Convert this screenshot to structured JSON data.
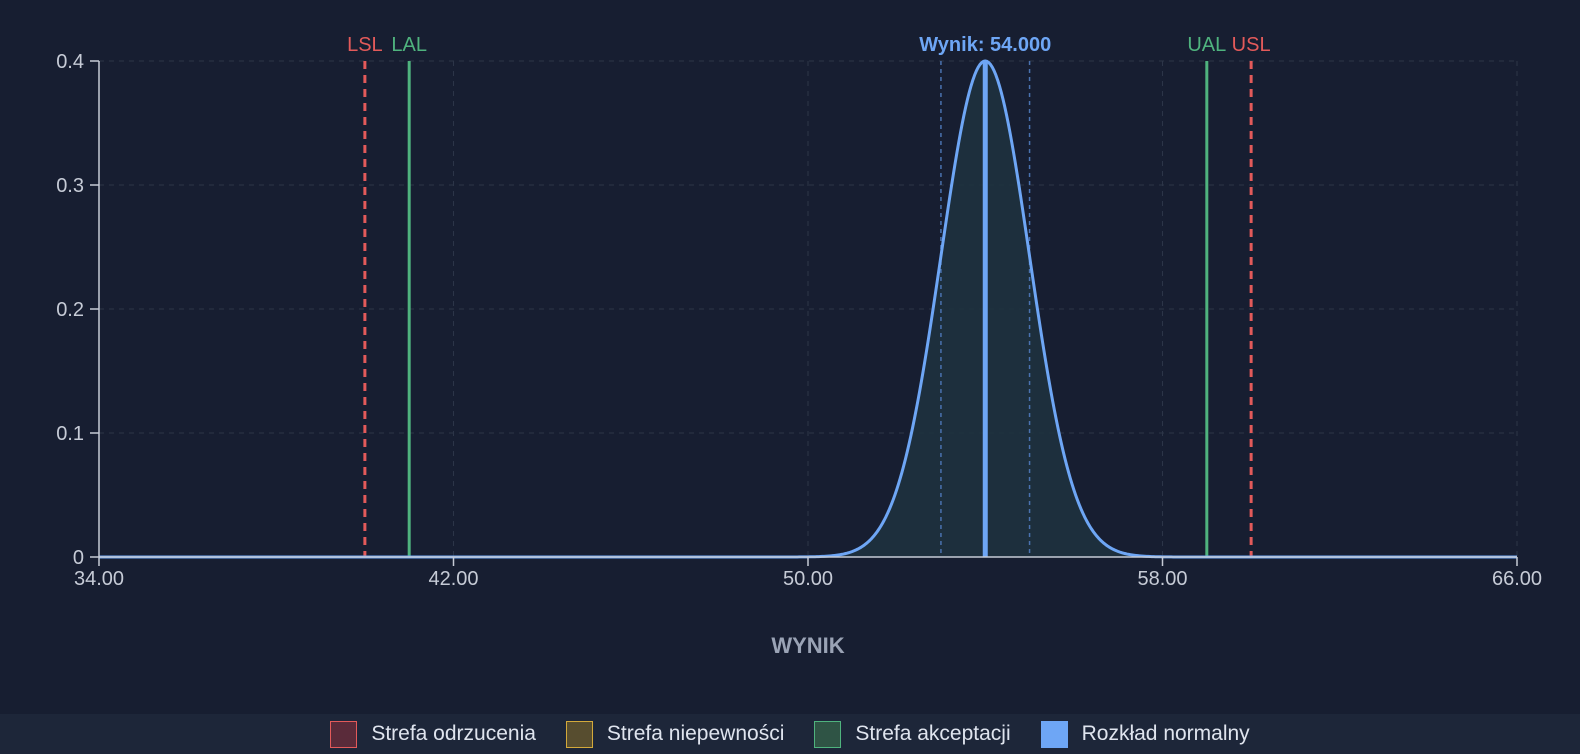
{
  "chart_data": {
    "type": "line",
    "title": "",
    "xlabel": "WYNIK",
    "ylabel": "",
    "xlim": [
      34,
      66
    ],
    "ylim": [
      0,
      0.4
    ],
    "x_ticks": [
      "34.00",
      "42.00",
      "50.00",
      "58.00",
      "66.00"
    ],
    "x_tick_values": [
      34,
      42,
      50,
      58,
      66
    ],
    "y_ticks": [
      "0",
      "0.1",
      "0.2",
      "0.3",
      "0.4"
    ],
    "y_tick_values": [
      0,
      0.1,
      0.2,
      0.3,
      0.4
    ],
    "grid": true,
    "distribution": {
      "mean": 54.0,
      "sd": 1.0,
      "peak": 0.4,
      "color": "#6ea6f5"
    },
    "result": {
      "label": "Wynik: 54.000",
      "value": 54.0,
      "uncertainty_lower": 53.0,
      "uncertainty_upper": 55.0
    },
    "limits": [
      {
        "name": "LSL",
        "value": 40.0,
        "style": "dashed",
        "color": "#e35a5a"
      },
      {
        "name": "LAL",
        "value": 41.0,
        "style": "solid",
        "color": "#4fb37e"
      },
      {
        "name": "UAL",
        "value": 59.0,
        "style": "solid",
        "color": "#4fb37e"
      },
      {
        "name": "USL",
        "value": 60.0,
        "style": "dashed",
        "color": "#e35a5a"
      }
    ],
    "legend": {
      "placement": "bottom",
      "items": [
        {
          "label": "Strefa odrzucenia",
          "fill": "#5a2b3a",
          "border": "#e35a5a"
        },
        {
          "label": "Strefa niepewności",
          "fill": "#574d2f",
          "border": "#d3a93b"
        },
        {
          "label": "Strefa akceptacji",
          "fill": "#2f5445",
          "border": "#4fb37e"
        },
        {
          "label": "Rozkład normalny",
          "fill": "#6ea6f5",
          "border": "#6ea6f5"
        }
      ]
    }
  },
  "colors": {
    "background": "#171e31",
    "axis": "#c6cbd6",
    "tick_text": "#c6cbd6",
    "grid": "#2c3548",
    "xlabel": "#9aa3b5",
    "fill": "#1f3340"
  }
}
